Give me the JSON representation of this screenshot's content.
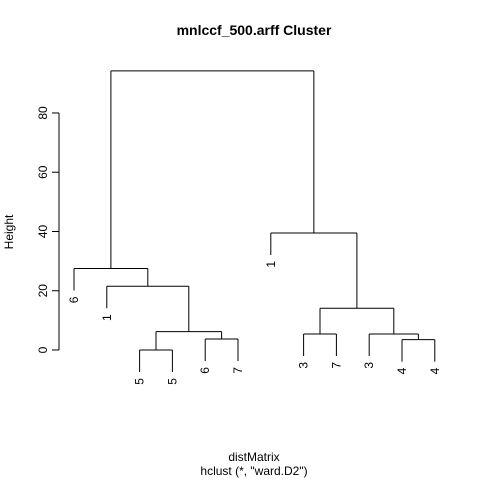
{
  "chart_data": {
    "type": "dendrogram",
    "title": "mnlccf_500.arff Cluster",
    "xlabel": "distMatrix",
    "sublabel": "hclust (*, \"ward.D2\")",
    "ylabel": "Height",
    "yticks": [
      0,
      20,
      40,
      60,
      80
    ],
    "ylim": [
      0,
      94
    ],
    "leaves": [
      "6",
      "1",
      "5",
      "5",
      "6",
      "7",
      "1",
      "3",
      "7",
      "3",
      "4",
      "4"
    ],
    "merges": [
      {
        "a": "L2",
        "b": "L3",
        "height": 0
      },
      {
        "a": "L4",
        "b": "L5",
        "height": 3.7
      },
      {
        "a": "M0",
        "b": "M1",
        "height": 6.2
      },
      {
        "a": "L1",
        "b": "M2",
        "height": 21.5
      },
      {
        "a": "L0",
        "b": "M3",
        "height": 27.5
      },
      {
        "a": "L7",
        "b": "L8",
        "height": 5.4
      },
      {
        "a": "L10",
        "b": "L11",
        "height": 3.5
      },
      {
        "a": "L9",
        "b": "M6",
        "height": 5.4
      },
      {
        "a": "M5",
        "b": "M7",
        "height": 14.1
      },
      {
        "a": "L6",
        "b": "M8",
        "height": 39.5
      },
      {
        "a": "M4",
        "b": "M9",
        "height": 94.2
      }
    ],
    "leaf_heights": [
      27.5,
      21.5,
      0,
      0,
      3.7,
      3.7,
      39.5,
      5.4,
      5.4,
      5.4,
      3.5,
      3.5
    ]
  }
}
